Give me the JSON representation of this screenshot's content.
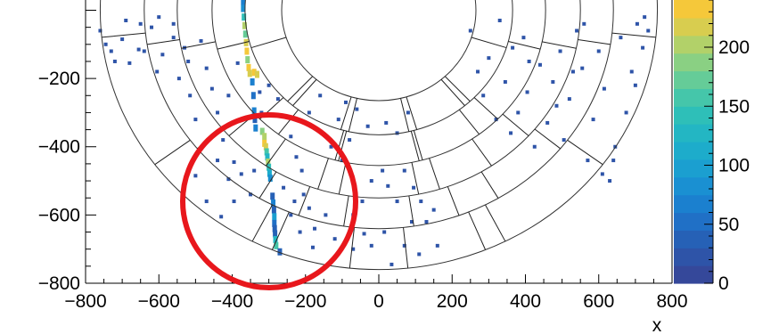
{
  "chart_data": {
    "type": "heatmap",
    "title": "",
    "xlabel": "x",
    "ylabel": "",
    "xlim": [
      -800,
      800
    ],
    "ylim": [
      -800,
      30
    ],
    "x_ticks": [
      -800,
      -600,
      -400,
      -200,
      0,
      200,
      400,
      600,
      800
    ],
    "x_tick_labels": [
      "−800",
      "−600",
      "−400",
      "−200",
      "0",
      "200",
      "400",
      "600",
      "800"
    ],
    "y_ticks": [
      -200,
      -400,
      -600,
      -800
    ],
    "y_tick_labels": [
      "−200",
      "−400",
      "−600",
      "−800"
    ],
    "colorbar": {
      "range": [
        0,
        240
      ],
      "ticks": [
        0,
        50,
        100,
        150,
        200
      ],
      "tick_labels": [
        "0",
        "50",
        "100",
        "150",
        "200"
      ],
      "palette": [
        "#35489a",
        "#2e54a8",
        "#2661b6",
        "#2070c6",
        "#1b80cf",
        "#1a90d2",
        "#1b9fd0",
        "#1daccb",
        "#23b6c3",
        "#2ebfb8",
        "#45c6aa",
        "#65cc98",
        "#8ad083",
        "#b2d169",
        "#d8cd4f",
        "#f5c83a"
      ]
    },
    "detector_rings": [
      265,
      365,
      455,
      550,
      640,
      760
    ],
    "sector_boundaries_deg": [
      [
        -50.0,
        -53.0,
        -56.0,
        -59.4,
        -63.0
      ],
      [
        -73.5,
        -76.0,
        -78.6,
        -81.4,
        -84.0
      ],
      [
        -103.0,
        -105.2,
        -107.6,
        -110.0,
        -112.5
      ],
      [
        -133.0,
        -135.5,
        -138.0,
        -140.7,
        -143.5
      ],
      [
        -162.5,
        -165.5,
        -168.3,
        -171.0,
        -174.0
      ]
    ],
    "track_points": [
      {
        "x": -370,
        "y": 25,
        "v": 60
      },
      {
        "x": -370,
        "y": 5,
        "v": 80
      },
      {
        "x": -368,
        "y": -20,
        "v": 140
      },
      {
        "x": -366,
        "y": -45,
        "v": 200
      },
      {
        "x": -364,
        "y": -70,
        "v": 170
      },
      {
        "x": -362,
        "y": -95,
        "v": 215
      },
      {
        "x": -360,
        "y": -120,
        "v": 230
      },
      {
        "x": -358,
        "y": -145,
        "v": 180
      },
      {
        "x": -355,
        "y": -168,
        "v": 240
      },
      {
        "x": -352,
        "y": -185,
        "v": 220
      },
      {
        "x": -340,
        "y": -182,
        "v": 240
      },
      {
        "x": -332,
        "y": -188,
        "v": 220
      },
      {
        "x": -345,
        "y": -210,
        "v": 60
      },
      {
        "x": -342,
        "y": -250,
        "v": 50
      },
      {
        "x": -340,
        "y": -295,
        "v": 60
      },
      {
        "x": -338,
        "y": -320,
        "v": 40
      },
      {
        "x": -336,
        "y": -345,
        "v": 70
      },
      {
        "x": -318,
        "y": -355,
        "v": 180
      },
      {
        "x": -312,
        "y": -370,
        "v": 200
      },
      {
        "x": -312,
        "y": -390,
        "v": 230
      },
      {
        "x": -308,
        "y": -400,
        "v": 220
      },
      {
        "x": -306,
        "y": -415,
        "v": 160
      },
      {
        "x": -304,
        "y": -430,
        "v": 130
      },
      {
        "x": -302,
        "y": -445,
        "v": 200
      },
      {
        "x": -300,
        "y": -460,
        "v": 140
      },
      {
        "x": -298,
        "y": -478,
        "v": 110
      },
      {
        "x": -296,
        "y": -492,
        "v": 80
      },
      {
        "x": -290,
        "y": -545,
        "v": 40
      },
      {
        "x": -288,
        "y": -565,
        "v": 60
      },
      {
        "x": -286,
        "y": -585,
        "v": 40
      },
      {
        "x": -285,
        "y": -605,
        "v": 90
      },
      {
        "x": -285,
        "y": -625,
        "v": 50
      },
      {
        "x": -284,
        "y": -640,
        "v": 30
      },
      {
        "x": -283,
        "y": -655,
        "v": 30
      },
      {
        "x": -282,
        "y": -672,
        "v": 130
      },
      {
        "x": -280,
        "y": -690,
        "v": 160
      },
      {
        "x": -270,
        "y": -708,
        "v": 30
      }
    ],
    "scatter_hits": [
      {
        "x": -745,
        "y": -100,
        "v": 15
      },
      {
        "x": -730,
        "y": -120,
        "v": 15
      },
      {
        "x": -720,
        "y": -150,
        "v": 15
      },
      {
        "x": -700,
        "y": -85,
        "v": 15
      },
      {
        "x": -680,
        "y": -155,
        "v": 15
      },
      {
        "x": -655,
        "y": -115,
        "v": 15
      },
      {
        "x": -620,
        "y": -50,
        "v": 15
      },
      {
        "x": -605,
        "y": -180,
        "v": 15
      },
      {
        "x": -590,
        "y": -130,
        "v": 15
      },
      {
        "x": -560,
        "y": -80,
        "v": 15
      },
      {
        "x": -545,
        "y": -200,
        "v": 15
      },
      {
        "x": -530,
        "y": -110,
        "v": 15
      },
      {
        "x": -515,
        "y": -250,
        "v": 15
      },
      {
        "x": -500,
        "y": -320,
        "v": 15
      },
      {
        "x": -485,
        "y": -90,
        "v": 15
      },
      {
        "x": -470,
        "y": -170,
        "v": 15
      },
      {
        "x": -455,
        "y": -230,
        "v": 15
      },
      {
        "x": -440,
        "y": -300,
        "v": 15
      },
      {
        "x": -425,
        "y": -380,
        "v": 15
      },
      {
        "x": -410,
        "y": -250,
        "v": 15
      },
      {
        "x": -395,
        "y": -445,
        "v": 15
      },
      {
        "x": -385,
        "y": -155,
        "v": 15
      },
      {
        "x": -440,
        "y": -440,
        "v": 15
      },
      {
        "x": -500,
        "y": -485,
        "v": 15
      },
      {
        "x": -470,
        "y": -560,
        "v": 15
      },
      {
        "x": -430,
        "y": -605,
        "v": 15
      },
      {
        "x": -395,
        "y": -560,
        "v": 15
      },
      {
        "x": -410,
        "y": -495,
        "v": 15
      },
      {
        "x": -375,
        "y": -480,
        "v": 15
      },
      {
        "x": -350,
        "y": -540,
        "v": 15
      },
      {
        "x": -340,
        "y": -470,
        "v": 15
      },
      {
        "x": -325,
        "y": -240,
        "v": 15
      },
      {
        "x": -320,
        "y": -300,
        "v": 15
      },
      {
        "x": -300,
        "y": -220,
        "v": 15
      },
      {
        "x": -275,
        "y": -260,
        "v": 15
      },
      {
        "x": -262,
        "y": -310,
        "v": 15
      },
      {
        "x": -240,
        "y": -370,
        "v": 15
      },
      {
        "x": -225,
        "y": -430,
        "v": 15
      },
      {
        "x": -210,
        "y": -470,
        "v": 15
      },
      {
        "x": -260,
        "y": -520,
        "v": 15
      },
      {
        "x": -230,
        "y": -560,
        "v": 15
      },
      {
        "x": -205,
        "y": -540,
        "v": 15
      },
      {
        "x": -240,
        "y": -600,
        "v": 15
      },
      {
        "x": -215,
        "y": -650,
        "v": 15
      },
      {
        "x": -190,
        "y": -580,
        "v": 15
      },
      {
        "x": -175,
        "y": -640,
        "v": 15
      },
      {
        "x": -180,
        "y": -695,
        "v": 15
      },
      {
        "x": -145,
        "y": -600,
        "v": 15
      },
      {
        "x": -120,
        "y": -670,
        "v": 15
      },
      {
        "x": -70,
        "y": -700,
        "v": 15
      },
      {
        "x": -40,
        "y": -655,
        "v": 15
      },
      {
        "x": -20,
        "y": -690,
        "v": 15
      },
      {
        "x": 15,
        "y": -650,
        "v": 15
      },
      {
        "x": 35,
        "y": -745,
        "v": 15
      },
      {
        "x": 70,
        "y": -690,
        "v": 15
      },
      {
        "x": 90,
        "y": -620,
        "v": 15
      },
      {
        "x": 110,
        "y": -715,
        "v": 15
      },
      {
        "x": 130,
        "y": -620,
        "v": 15
      },
      {
        "x": 150,
        "y": -585,
        "v": 15
      },
      {
        "x": 160,
        "y": -690,
        "v": 15
      },
      {
        "x": -70,
        "y": -600,
        "v": 15
      },
      {
        "x": -45,
        "y": -560,
        "v": 15
      },
      {
        "x": -20,
        "y": -500,
        "v": 15
      },
      {
        "x": 10,
        "y": -470,
        "v": 15
      },
      {
        "x": 25,
        "y": -515,
        "v": 15
      },
      {
        "x": 50,
        "y": -560,
        "v": 15
      },
      {
        "x": 70,
        "y": -470,
        "v": 15
      },
      {
        "x": 95,
        "y": -520,
        "v": 15
      },
      {
        "x": 115,
        "y": -560,
        "v": 15
      },
      {
        "x": -100,
        "y": -440,
        "v": 15
      },
      {
        "x": -130,
        "y": -400,
        "v": 15
      },
      {
        "x": -80,
        "y": -380,
        "v": 15
      },
      {
        "x": -30,
        "y": -340,
        "v": 15
      },
      {
        "x": -60,
        "y": -290,
        "v": 15
      },
      {
        "x": -110,
        "y": -320,
        "v": 15
      },
      {
        "x": -190,
        "y": -300,
        "v": 15
      },
      {
        "x": -160,
        "y": -250,
        "v": 15
      },
      {
        "x": -90,
        "y": -270,
        "v": 15
      },
      {
        "x": 20,
        "y": -330,
        "v": 15
      },
      {
        "x": 50,
        "y": -360,
        "v": 15
      },
      {
        "x": 80,
        "y": -300,
        "v": 15
      },
      {
        "x": 250,
        "y": -60,
        "v": 15
      },
      {
        "x": 270,
        "y": -180,
        "v": 15
      },
      {
        "x": 285,
        "y": -250,
        "v": 15
      },
      {
        "x": 300,
        "y": -140,
        "v": 15
      },
      {
        "x": 320,
        "y": -320,
        "v": 15
      },
      {
        "x": 345,
        "y": -210,
        "v": 15
      },
      {
        "x": 360,
        "y": -360,
        "v": 15
      },
      {
        "x": 380,
        "y": -300,
        "v": 15
      },
      {
        "x": 395,
        "y": -80,
        "v": 15
      },
      {
        "x": 405,
        "y": -240,
        "v": 15
      },
      {
        "x": 425,
        "y": -400,
        "v": 15
      },
      {
        "x": 440,
        "y": -160,
        "v": 15
      },
      {
        "x": 460,
        "y": -330,
        "v": 15
      },
      {
        "x": 475,
        "y": -210,
        "v": 15
      },
      {
        "x": 495,
        "y": -120,
        "v": 15
      },
      {
        "x": 505,
        "y": -380,
        "v": 15
      },
      {
        "x": 520,
        "y": -260,
        "v": 15
      },
      {
        "x": 540,
        "y": -60,
        "v": 15
      },
      {
        "x": 555,
        "y": -170,
        "v": 15
      },
      {
        "x": 570,
        "y": -440,
        "v": 15
      },
      {
        "x": 585,
        "y": -320,
        "v": 15
      },
      {
        "x": 600,
        "y": -120,
        "v": 15
      },
      {
        "x": 615,
        "y": -230,
        "v": 15
      },
      {
        "x": 630,
        "y": -500,
        "v": 15
      },
      {
        "x": 645,
        "y": -400,
        "v": 15
      },
      {
        "x": 660,
        "y": -80,
        "v": 15
      },
      {
        "x": 675,
        "y": -300,
        "v": 15
      },
      {
        "x": 690,
        "y": -180,
        "v": 15
      },
      {
        "x": 705,
        "y": -40,
        "v": 15
      },
      {
        "x": 720,
        "y": -110,
        "v": 15
      },
      {
        "x": 735,
        "y": -60,
        "v": 15
      },
      {
        "x": 725,
        "y": -20,
        "v": 15
      },
      {
        "x": 700,
        "y": -220,
        "v": 15
      },
      {
        "x": 640,
        "y": -440,
        "v": 15
      },
      {
        "x": 610,
        "y": -480,
        "v": 15
      },
      {
        "x": 560,
        "y": -40,
        "v": 15
      },
      {
        "x": 485,
        "y": -280,
        "v": 15
      },
      {
        "x": 530,
        "y": -180,
        "v": 15
      },
      {
        "x": 410,
        "y": -150,
        "v": 15
      },
      {
        "x": 365,
        "y": -110,
        "v": 15
      },
      {
        "x": 330,
        "y": -30,
        "v": 15
      },
      {
        "x": -650,
        "y": -40,
        "v": 15
      },
      {
        "x": -600,
        "y": -20,
        "v": 15
      },
      {
        "x": -560,
        "y": -40,
        "v": 15
      },
      {
        "x": -520,
        "y": -150,
        "v": 15
      },
      {
        "x": -640,
        "y": -120,
        "v": 15
      },
      {
        "x": -690,
        "y": -30,
        "v": 15
      },
      {
        "x": -760,
        "y": -60,
        "v": 15
      }
    ]
  }
}
